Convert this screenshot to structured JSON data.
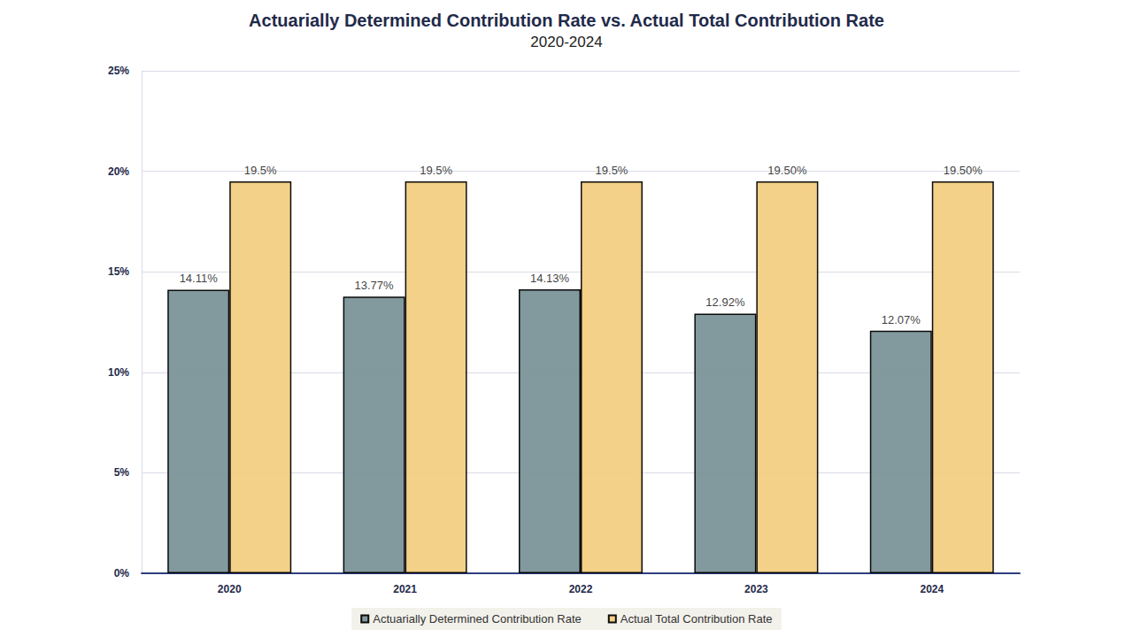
{
  "chart_data": {
    "type": "bar",
    "title": "Actuarially Determined Contribution Rate vs. Actual Total Contribution Rate",
    "subtitle": "2020-2024",
    "categories": [
      "2020",
      "2021",
      "2022",
      "2023",
      "2024"
    ],
    "series": [
      {
        "name": "Actuarially Determined Contribution Rate",
        "color": "#7b9499",
        "values": [
          14.11,
          13.77,
          14.13,
          12.92,
          12.07
        ],
        "value_labels": [
          "14.11%",
          "13.77%",
          "14.13%",
          "12.92%",
          "12.07%"
        ]
      },
      {
        "name": "Actual Total Contribution Rate",
        "color": "#f3cf82",
        "values": [
          19.5,
          19.5,
          19.5,
          19.5,
          19.5
        ],
        "value_labels": [
          "19.5%",
          "19.5%",
          "19.5%",
          "19.50%",
          "19.50%"
        ]
      }
    ],
    "ylim": [
      0,
      25
    ],
    "yticks": [
      {
        "value": 0,
        "label": "0%"
      },
      {
        "value": 5,
        "label": "5%"
      },
      {
        "value": 10,
        "label": "10%"
      },
      {
        "value": 15,
        "label": "15%"
      },
      {
        "value": 20,
        "label": "20%"
      },
      {
        "value": 25,
        "label": "25%"
      }
    ],
    "grid": true,
    "legend": "bottom",
    "data_labels": true
  }
}
